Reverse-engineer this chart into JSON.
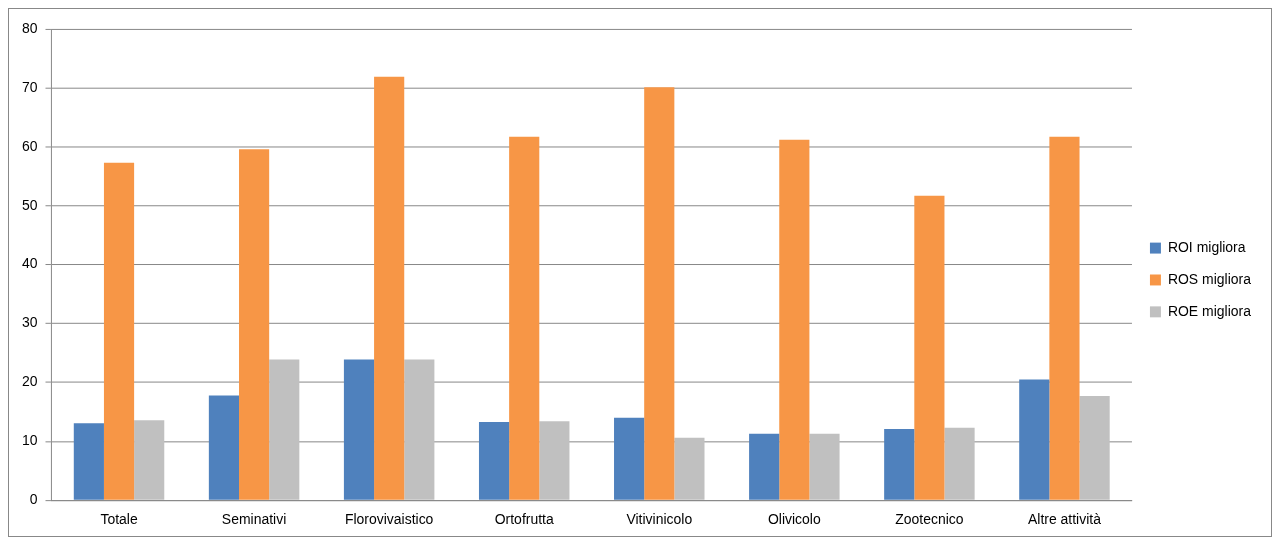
{
  "chart_data": {
    "type": "bar",
    "categories": [
      "Totale",
      "Seminativi",
      "Florovivaistico",
      "Ortofrutta",
      "Vitivinicolo",
      "Olivicolo",
      "Zootecnico",
      "Altre attività"
    ],
    "series": [
      {
        "name": "ROI migliora",
        "color": "#4f81bd",
        "values": [
          13.1,
          17.8,
          23.9,
          13.3,
          14.0,
          11.3,
          12.1,
          20.5
        ]
      },
      {
        "name": "ROS migliora",
        "color": "#f79646",
        "values": [
          57.3,
          59.6,
          71.9,
          61.7,
          70.1,
          61.2,
          51.7,
          61.7
        ]
      },
      {
        "name": "ROE migliora",
        "color": "#c0c0c0",
        "values": [
          13.6,
          23.9,
          23.9,
          13.4,
          10.6,
          11.3,
          12.3,
          17.7
        ]
      }
    ],
    "ylim": [
      0,
      80
    ],
    "yticks": [
      0,
      10,
      20,
      30,
      40,
      50,
      60,
      70,
      80
    ],
    "grid": "y",
    "legend": "right"
  }
}
